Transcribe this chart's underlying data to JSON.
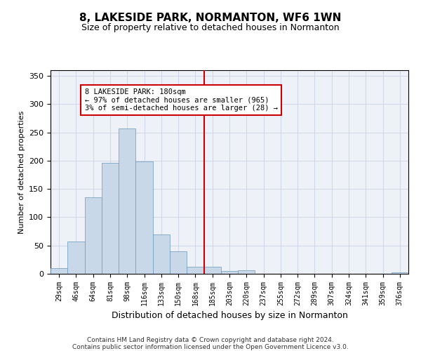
{
  "title": "8, LAKESIDE PARK, NORMANTON, WF6 1WN",
  "subtitle": "Size of property relative to detached houses in Normanton",
  "xlabel": "Distribution of detached houses by size in Normanton",
  "ylabel": "Number of detached properties",
  "footer_line1": "Contains HM Land Registry data © Crown copyright and database right 2024.",
  "footer_line2": "Contains public sector information licensed under the Open Government Licence v3.0.",
  "annotation_line1": "8 LAKESIDE PARK: 180sqm",
  "annotation_line2": "← 97% of detached houses are smaller (965)",
  "annotation_line3": "3% of semi-detached houses are larger (28) →",
  "bar_color": "#c8d8e8",
  "bar_edge_color": "#6699bb",
  "vline_color": "#cc0000",
  "annotation_box_color": "#cc0000",
  "grid_color": "#d0d8e8",
  "background_color": "#eef2f8",
  "categories": [
    "29sqm",
    "46sqm",
    "64sqm",
    "81sqm",
    "98sqm",
    "116sqm",
    "133sqm",
    "150sqm",
    "168sqm",
    "185sqm",
    "203sqm",
    "220sqm",
    "237sqm",
    "255sqm",
    "272sqm",
    "289sqm",
    "307sqm",
    "324sqm",
    "341sqm",
    "359sqm",
    "376sqm"
  ],
  "values": [
    10,
    57,
    135,
    196,
    257,
    199,
    70,
    40,
    12,
    12,
    5,
    6,
    0,
    0,
    0,
    0,
    0,
    0,
    0,
    0,
    2
  ],
  "ylim": [
    0,
    360
  ],
  "yticks": [
    0,
    50,
    100,
    150,
    200,
    250,
    300,
    350
  ],
  "vline_position": 8.5,
  "title_fontsize": 11,
  "subtitle_fontsize": 9,
  "ylabel_fontsize": 8,
  "xlabel_fontsize": 9,
  "tick_fontsize": 7,
  "footer_fontsize": 6.5
}
